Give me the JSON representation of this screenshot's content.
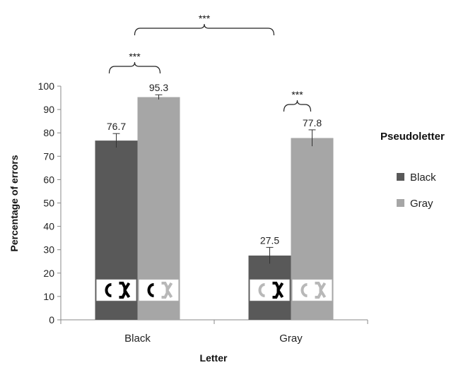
{
  "chart_data": {
    "type": "bar",
    "title": "",
    "xlabel": "Letter",
    "ylabel": "Percentage of errors",
    "categories": [
      "Black",
      "Gray"
    ],
    "series": [
      {
        "name": "Black",
        "color": "#595959",
        "values": [
          76.7,
          27.5
        ],
        "errors": [
          3.0,
          3.5
        ],
        "labels": [
          "76.7",
          "27.5"
        ]
      },
      {
        "name": "Gray",
        "color": "#a6a6a6",
        "values": [
          95.3,
          77.8
        ],
        "errors": [
          1.0,
          3.5
        ],
        "labels": [
          "95.3",
          "77.8"
        ]
      }
    ],
    "ylim": [
      0,
      100
    ],
    "yticks": [
      0,
      10,
      20,
      30,
      40,
      50,
      60,
      70,
      80,
      90,
      100
    ],
    "grid": false,
    "legend": {
      "title": "Pseudoletter",
      "position": "right"
    },
    "significance": [
      {
        "label": "***",
        "between": "Black letter: Black vs Gray pseudoletter"
      },
      {
        "label": "***",
        "between": "Gray letter: Black vs Gray pseudoletter"
      },
      {
        "label": "***",
        "between": "Black letter vs Gray letter"
      }
    ]
  }
}
